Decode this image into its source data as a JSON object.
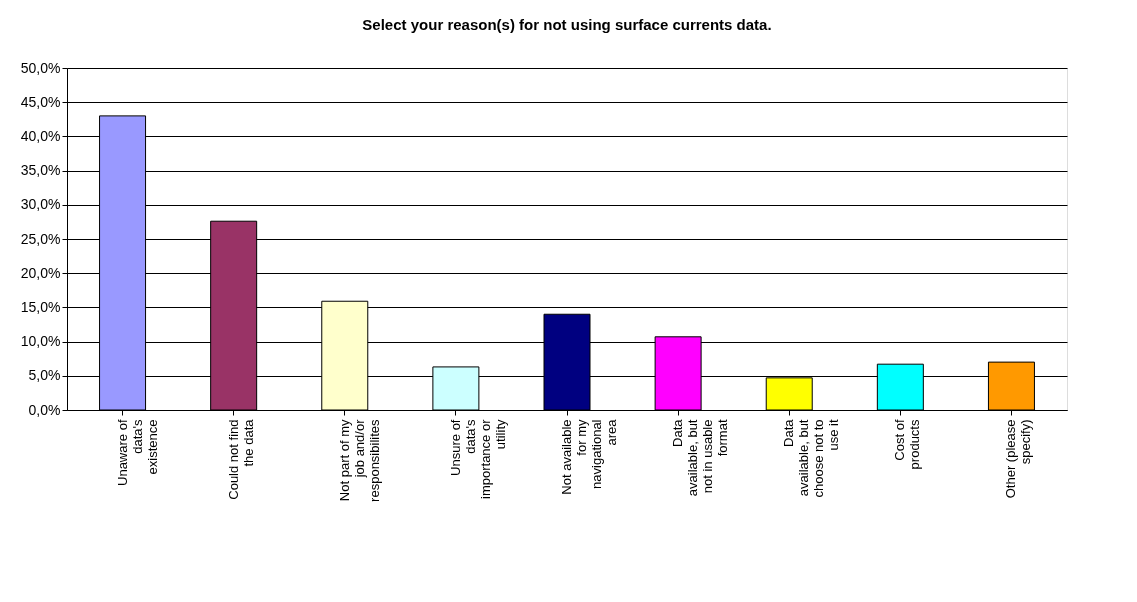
{
  "chart_data": {
    "type": "bar",
    "title": "Select your reason(s) for not using surface currents data.",
    "categories": [
      "Unaware of\ndata's\nexistence",
      "Could not find\nthe data",
      "Not part of my\njob and/or\nresponsibilites",
      "Unsure of\ndata's\nimportance or\nutility",
      "Not available\nfor my\nnavigational\narea",
      "Data\navailable, but\nnot in usable\nformat",
      "Data\navailable, but\nchoose not to\nuse it",
      "Cost of\nproducts",
      "Other (please\nspecify)"
    ],
    "values": [
      43.0,
      27.6,
      15.9,
      6.3,
      14.0,
      10.7,
      4.7,
      6.7,
      7.0
    ],
    "colors": [
      "#9999ff",
      "#993366",
      "#ffffcc",
      "#ccffff",
      "#000080",
      "#ff00ff",
      "#ffff00",
      "#00ffff",
      "#ff9900"
    ],
    "ylim": [
      0,
      50
    ],
    "yticks": [
      {
        "value": 0,
        "label": "0,0%"
      },
      {
        "value": 5,
        "label": "5,0%"
      },
      {
        "value": 10,
        "label": "10,0%"
      },
      {
        "value": 15,
        "label": "15,0%"
      },
      {
        "value": 20,
        "label": "20,0%"
      },
      {
        "value": 25,
        "label": "25,0%"
      },
      {
        "value": 30,
        "label": "30,0%"
      },
      {
        "value": 35,
        "label": "35,0%"
      },
      {
        "value": 40,
        "label": "40,0%"
      },
      {
        "value": 45,
        "label": "45,0%"
      },
      {
        "value": 50,
        "label": "50,0%"
      }
    ],
    "grid": "y",
    "legend": false
  }
}
